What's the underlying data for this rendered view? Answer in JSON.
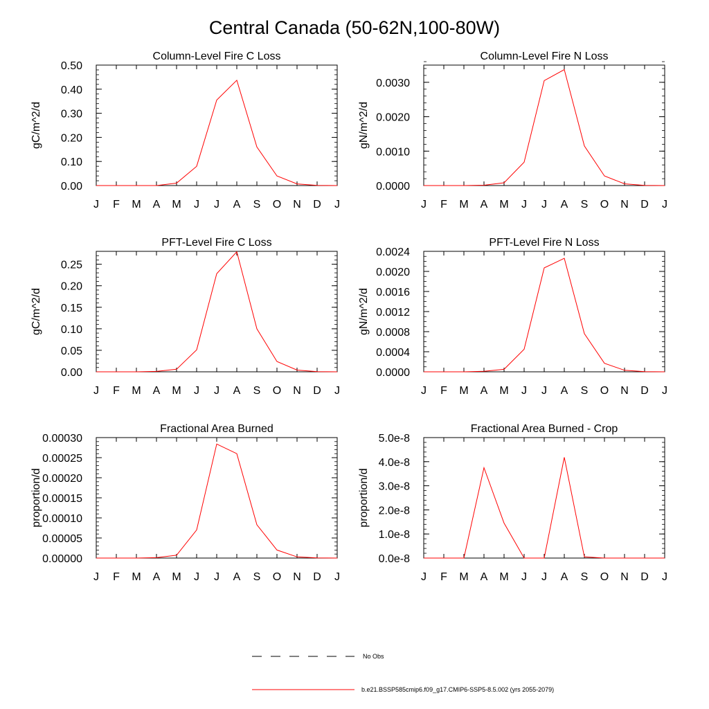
{
  "figure": {
    "title": "Central Canada (50-62N,100-80W)"
  },
  "legend": {
    "placement": "bottom-center",
    "entries": [
      {
        "label": "No Obs",
        "style": "dashed",
        "color": "#000000"
      },
      {
        "label": "b.e21.BSSP585cmip6.f09_g17.CMIP6-SSP5-8.5.002 (yrs 2055-2079)",
        "style": "solid",
        "color": "#ff0000"
      }
    ]
  },
  "chart_data": [
    {
      "type": "line",
      "title": "Column-Level Fire C Loss",
      "ylabel": "gC/m^2/d",
      "xlabel": "",
      "x_ticks": [
        "J",
        "F",
        "M",
        "A",
        "M",
        "J",
        "J",
        "A",
        "S",
        "O",
        "N",
        "D",
        "J"
      ],
      "ylim": [
        0,
        0.5
      ],
      "y_ticks": [
        "0.00",
        "0.10",
        "0.20",
        "0.30",
        "0.40",
        "0.50"
      ],
      "y_tick_values": [
        0,
        0.1,
        0.2,
        0.3,
        0.4,
        0.5
      ],
      "y_minor_step": 0.02,
      "series": [
        {
          "color": "#ff0000",
          "values": [
            0,
            0,
            0,
            0,
            0.01,
            0.08,
            0.355,
            0.437,
            0.16,
            0.04,
            0.007,
            0.001,
            0
          ]
        }
      ]
    },
    {
      "type": "line",
      "title": "Column-Level Fire N Loss",
      "ylabel": "gN/m^2/d",
      "xlabel": "",
      "x_ticks": [
        "J",
        "F",
        "M",
        "A",
        "M",
        "J",
        "J",
        "A",
        "S",
        "O",
        "N",
        "D",
        "J"
      ],
      "ylim": [
        0,
        0.0035
      ],
      "y_ticks": [
        "0.0000",
        "0.0010",
        "0.0020",
        "0.0030"
      ],
      "y_tick_values": [
        0,
        0.001,
        0.002,
        0.003
      ],
      "y_minor_step": 0.0002,
      "series": [
        {
          "color": "#ff0000",
          "values": [
            0,
            0,
            0,
            1e-05,
            8e-05,
            0.00068,
            0.00305,
            0.00337,
            0.00115,
            0.00028,
            5e-05,
            5e-06,
            0
          ]
        }
      ]
    },
    {
      "type": "line",
      "title": "PFT-Level Fire C Loss",
      "ylabel": "gC/m^2/d",
      "xlabel": "",
      "x_ticks": [
        "J",
        "F",
        "M",
        "A",
        "M",
        "J",
        "J",
        "A",
        "S",
        "O",
        "N",
        "D",
        "J"
      ],
      "ylim": [
        0,
        0.28
      ],
      "y_ticks": [
        "0.00",
        "0.05",
        "0.10",
        "0.15",
        "0.20",
        "0.25"
      ],
      "y_tick_values": [
        0,
        0.05,
        0.1,
        0.15,
        0.2,
        0.25
      ],
      "y_minor_step": 0.01,
      "series": [
        {
          "color": "#ff0000",
          "values": [
            0,
            0,
            0,
            0.001,
            0.006,
            0.051,
            0.228,
            0.279,
            0.1,
            0.024,
            0.004,
            0.0005,
            0
          ]
        }
      ]
    },
    {
      "type": "line",
      "title": "PFT-Level Fire N Loss",
      "ylabel": "gN/m^2/d",
      "xlabel": "",
      "x_ticks": [
        "J",
        "F",
        "M",
        "A",
        "M",
        "J",
        "J",
        "A",
        "S",
        "O",
        "N",
        "D",
        "J"
      ],
      "ylim": [
        0,
        0.0024
      ],
      "y_ticks": [
        "0.0000",
        "0.0004",
        "0.0008",
        "0.0012",
        "0.0016",
        "0.0020",
        "0.0024"
      ],
      "y_tick_values": [
        0,
        0.0004,
        0.0008,
        0.0012,
        0.0016,
        0.002,
        0.0024
      ],
      "y_minor_step": 0.0001,
      "series": [
        {
          "color": "#ff0000",
          "values": [
            0,
            0,
            0,
            1e-05,
            5e-05,
            0.00045,
            0.00207,
            0.00226,
            0.00076,
            0.00017,
            3e-05,
            4e-06,
            0
          ]
        }
      ]
    },
    {
      "type": "line",
      "title": "Fractional Area Burned",
      "ylabel": "proportion/d",
      "xlabel": "",
      "x_ticks": [
        "J",
        "F",
        "M",
        "A",
        "M",
        "J",
        "J",
        "A",
        "S",
        "O",
        "N",
        "D",
        "J"
      ],
      "ylim": [
        0,
        0.0003
      ],
      "y_ticks": [
        "0.00000",
        "0.00005",
        "0.00010",
        "0.00015",
        "0.00020",
        "0.00025",
        "0.00030"
      ],
      "y_tick_values": [
        0,
        5e-05,
        0.0001,
        0.00015,
        0.0002,
        0.00025,
        0.0003
      ],
      "y_minor_step": 1e-05,
      "series": [
        {
          "color": "#ff0000",
          "values": [
            0,
            0,
            0,
            1e-06,
            7e-06,
            7e-05,
            0.000284,
            0.00026,
            8.3e-05,
            2e-05,
            3e-06,
            5e-07,
            0
          ]
        }
      ]
    },
    {
      "type": "line",
      "title": "Fractional Area Burned - Crop",
      "ylabel": "proportion/d",
      "xlabel": "",
      "x_ticks": [
        "J",
        "F",
        "M",
        "A",
        "M",
        "J",
        "J",
        "A",
        "S",
        "O",
        "N",
        "D",
        "J"
      ],
      "ylim": [
        0,
        5e-08
      ],
      "y_ticks": [
        "0.0e-8",
        "1.0e-8",
        "2.0e-8",
        "3.0e-8",
        "4.0e-8",
        "5.0e-8"
      ],
      "y_tick_values": [
        0,
        1e-08,
        2e-08,
        3e-08,
        4e-08,
        5e-08
      ],
      "y_minor_step": 2e-09,
      "series": [
        {
          "color": "#ff0000",
          "values": [
            0,
            0,
            0,
            3.75e-08,
            1.45e-08,
            0,
            0,
            4.18e-08,
            5e-10,
            0,
            0,
            0,
            0
          ]
        }
      ]
    }
  ]
}
